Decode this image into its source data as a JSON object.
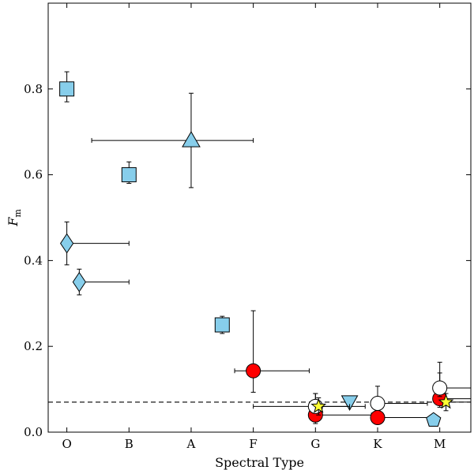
{
  "chart_data": {
    "type": "scatter",
    "title": "",
    "xlabel": "Spectral Type",
    "ylabel": "F",
    "ylabel_subscript": "m",
    "categories": [
      "O",
      "B",
      "A",
      "F",
      "G",
      "K",
      "M"
    ],
    "xlim": [
      -0.3,
      6.5
    ],
    "ylim": [
      0.0,
      1.0
    ],
    "yticks": [
      0.0,
      0.2,
      0.4,
      0.6,
      0.8
    ],
    "ytick_labels": [
      "0.0",
      "0.2",
      "0.4",
      "0.6",
      "0.8"
    ],
    "reference_line": {
      "y": 0.07,
      "style": "dashed"
    },
    "series": [
      {
        "name": "squares",
        "marker": "square",
        "color": "#87ceeb",
        "points": [
          {
            "x": 0.0,
            "y": 0.8,
            "yerr_lo": 0.03,
            "yerr_hi": 0.04
          },
          {
            "x": 1.0,
            "y": 0.6,
            "yerr_lo": 0.02,
            "yerr_hi": 0.03
          },
          {
            "x": 2.5,
            "y": 0.25,
            "yerr_lo": 0.02,
            "yerr_hi": 0.02
          }
        ]
      },
      {
        "name": "triangle-up",
        "marker": "triangle-up",
        "color": "#87ceeb",
        "points": [
          {
            "x": 2.0,
            "y": 0.68,
            "yerr_lo": 0.11,
            "yerr_hi": 0.11,
            "xerr_lo": 1.6,
            "xerr_hi": 1.0
          }
        ]
      },
      {
        "name": "diamonds",
        "marker": "diamond",
        "color": "#87ceeb",
        "points": [
          {
            "x": 0.0,
            "y": 0.44,
            "yerr_lo": 0.05,
            "yerr_hi": 0.05,
            "xerr_lo": 0,
            "xerr_hi": 1.0
          },
          {
            "x": 0.2,
            "y": 0.35,
            "yerr_lo": 0.03,
            "yerr_hi": 0.03,
            "xerr_lo": 0,
            "xerr_hi": 0.8
          }
        ]
      },
      {
        "name": "red-circles",
        "marker": "circle",
        "color": "#ff0000",
        "points": [
          {
            "x": 3.0,
            "y": 0.143,
            "yerr_lo": 0.05,
            "yerr_hi": 0.14,
            "xerr_lo": 0.3,
            "xerr_hi": 0.9
          },
          {
            "x": 4.0,
            "y": 0.04,
            "yerr_lo": 0.02,
            "yerr_hi": 0.05,
            "xerr_lo": 0,
            "xerr_hi": 0.9
          },
          {
            "x": 5.0,
            "y": 0.034,
            "yerr_lo": 0.01,
            "yerr_hi": 0.03,
            "xerr_lo": 0,
            "xerr_hi": 0.9
          },
          {
            "x": 6.0,
            "y": 0.078,
            "yerr_lo": 0.02,
            "yerr_hi": 0.06,
            "xerr_lo": 0,
            "xerr_hi": 0.5
          }
        ]
      },
      {
        "name": "open-circles",
        "marker": "circle",
        "color": "#ffffff",
        "points": [
          {
            "x": 4.0,
            "y": 0.06,
            "yerr_lo": 0.01,
            "yerr_hi": 0.03,
            "xerr_lo": 1.0,
            "xerr_hi": 0.8
          },
          {
            "x": 5.0,
            "y": 0.067,
            "yerr_lo": 0.01,
            "yerr_hi": 0.04,
            "xerr_lo": 0,
            "xerr_hi": 0.8
          },
          {
            "x": 6.0,
            "y": 0.103,
            "yerr_lo": 0.02,
            "yerr_hi": 0.06,
            "xerr_lo": 0,
            "xerr_hi": 0.5
          }
        ]
      },
      {
        "name": "triangle-down",
        "marker": "triangle-down",
        "color": "#87ceeb",
        "points": [
          {
            "x": 4.55,
            "y": 0.07
          }
        ]
      },
      {
        "name": "pentagon",
        "marker": "pentagon",
        "color": "#87ceeb",
        "points": [
          {
            "x": 5.9,
            "y": 0.028,
            "yerr_lo": 0.01,
            "yerr_hi": 0.01
          }
        ]
      },
      {
        "name": "stars",
        "marker": "star",
        "color": "#ffff33",
        "points": [
          {
            "x": 4.05,
            "y": 0.06,
            "yerr_lo": 0.02,
            "yerr_hi": 0.02,
            "xerr_lo": 0,
            "xerr_hi": 0.5
          },
          {
            "x": 6.1,
            "y": 0.07,
            "yerr_lo": 0.02,
            "yerr_hi": 0.02,
            "xerr_lo": 0,
            "xerr_hi": 0.4
          }
        ]
      }
    ]
  }
}
